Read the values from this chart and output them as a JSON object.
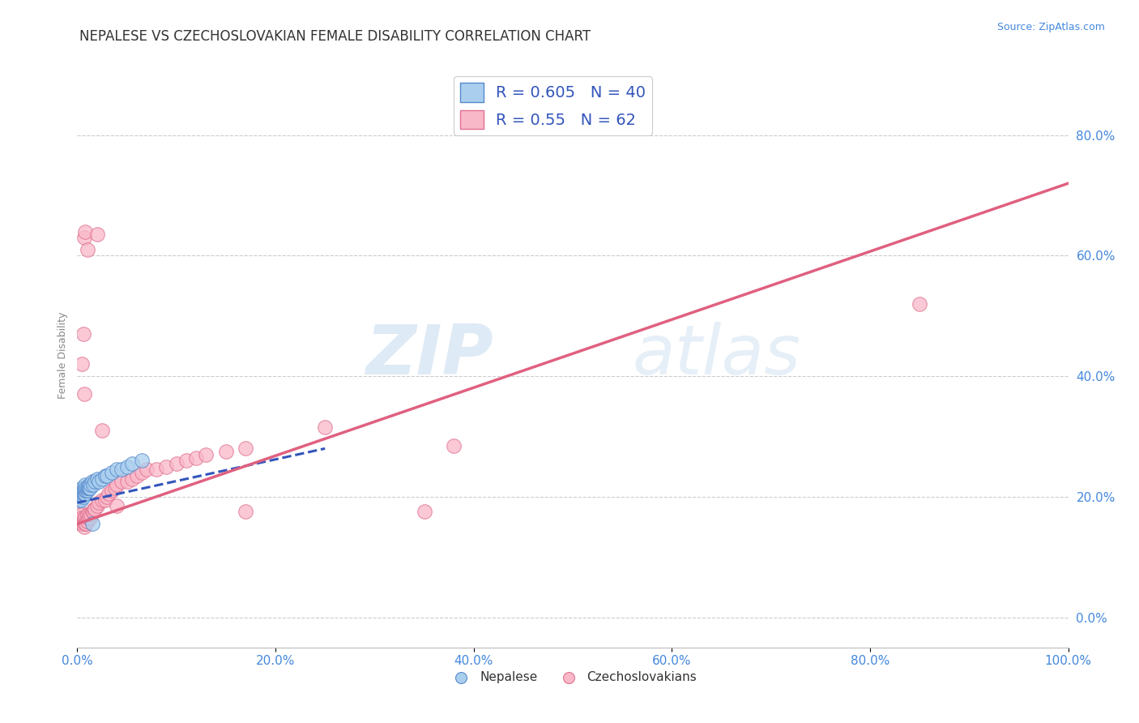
{
  "title": "NEPALESE VS CZECHOSLOVAKIAN FEMALE DISABILITY CORRELATION CHART",
  "source_text": "Source: ZipAtlas.com",
  "ylabel": "Female Disability",
  "xlim": [
    0.0,
    1.0
  ],
  "ylim": [
    -0.05,
    0.92
  ],
  "xticks": [
    0.0,
    0.2,
    0.4,
    0.6,
    0.8,
    1.0
  ],
  "xtick_labels": [
    "0.0%",
    "20.0%",
    "40.0%",
    "60.0%",
    "80.0%",
    "100.0%"
  ],
  "yticks": [
    0.0,
    0.2,
    0.4,
    0.6,
    0.8
  ],
  "ytick_labels": [
    "0.0%",
    "20.0%",
    "40.0%",
    "60.0%",
    "80.0%"
  ],
  "nepalese_R": 0.605,
  "nepalese_N": 40,
  "czechoslovakian_R": 0.55,
  "czechoslovakian_N": 62,
  "nepalese_color": "#AACFEE",
  "czechoslovakian_color": "#F9B8C8",
  "nepalese_edge_color": "#5588CC",
  "czechoslovakian_edge_color": "#E07090",
  "nepalese_line_color": "#3355BB",
  "czechoslovakian_line_color": "#E06080",
  "axis_tick_color": "#4488DD",
  "legend_text_color": "#3355BB",
  "watermark_color": "#DDEEFF",
  "title_fontsize": 12,
  "axis_label_fontsize": 9,
  "tick_fontsize": 11,
  "legend_fontsize": 14,
  "nepalese_scatter": [
    [
      0.002,
      0.195
    ],
    [
      0.003,
      0.205
    ],
    [
      0.003,
      0.21
    ],
    [
      0.004,
      0.2
    ],
    [
      0.004,
      0.195
    ],
    [
      0.005,
      0.205
    ],
    [
      0.005,
      0.21
    ],
    [
      0.005,
      0.215
    ],
    [
      0.006,
      0.2
    ],
    [
      0.006,
      0.205
    ],
    [
      0.006,
      0.21
    ],
    [
      0.007,
      0.205
    ],
    [
      0.007,
      0.215
    ],
    [
      0.008,
      0.205
    ],
    [
      0.008,
      0.21
    ],
    [
      0.008,
      0.22
    ],
    [
      0.009,
      0.21
    ],
    [
      0.009,
      0.215
    ],
    [
      0.01,
      0.21
    ],
    [
      0.01,
      0.215
    ],
    [
      0.011,
      0.215
    ],
    [
      0.012,
      0.215
    ],
    [
      0.012,
      0.22
    ],
    [
      0.013,
      0.215
    ],
    [
      0.014,
      0.22
    ],
    [
      0.015,
      0.225
    ],
    [
      0.016,
      0.22
    ],
    [
      0.018,
      0.225
    ],
    [
      0.02,
      0.23
    ],
    [
      0.022,
      0.225
    ],
    [
      0.025,
      0.23
    ],
    [
      0.028,
      0.235
    ],
    [
      0.03,
      0.235
    ],
    [
      0.035,
      0.24
    ],
    [
      0.04,
      0.245
    ],
    [
      0.045,
      0.245
    ],
    [
      0.05,
      0.25
    ],
    [
      0.055,
      0.255
    ],
    [
      0.065,
      0.26
    ],
    [
      0.015,
      0.155
    ]
  ],
  "czechoslovakian_scatter": [
    [
      0.002,
      0.175
    ],
    [
      0.003,
      0.165
    ],
    [
      0.003,
      0.155
    ],
    [
      0.004,
      0.16
    ],
    [
      0.004,
      0.17
    ],
    [
      0.005,
      0.155
    ],
    [
      0.005,
      0.165
    ],
    [
      0.006,
      0.16
    ],
    [
      0.006,
      0.155
    ],
    [
      0.007,
      0.165
    ],
    [
      0.007,
      0.15
    ],
    [
      0.008,
      0.155
    ],
    [
      0.008,
      0.165
    ],
    [
      0.009,
      0.16
    ],
    [
      0.009,
      0.155
    ],
    [
      0.01,
      0.16
    ],
    [
      0.01,
      0.17
    ],
    [
      0.011,
      0.165
    ],
    [
      0.012,
      0.17
    ],
    [
      0.013,
      0.165
    ],
    [
      0.014,
      0.17
    ],
    [
      0.015,
      0.175
    ],
    [
      0.016,
      0.175
    ],
    [
      0.017,
      0.18
    ],
    [
      0.018,
      0.18
    ],
    [
      0.02,
      0.185
    ],
    [
      0.022,
      0.19
    ],
    [
      0.025,
      0.195
    ],
    [
      0.028,
      0.195
    ],
    [
      0.03,
      0.2
    ],
    [
      0.032,
      0.205
    ],
    [
      0.035,
      0.21
    ],
    [
      0.038,
      0.215
    ],
    [
      0.04,
      0.22
    ],
    [
      0.045,
      0.225
    ],
    [
      0.05,
      0.225
    ],
    [
      0.055,
      0.23
    ],
    [
      0.06,
      0.235
    ],
    [
      0.065,
      0.24
    ],
    [
      0.07,
      0.245
    ],
    [
      0.08,
      0.245
    ],
    [
      0.09,
      0.25
    ],
    [
      0.1,
      0.255
    ],
    [
      0.11,
      0.26
    ],
    [
      0.12,
      0.265
    ],
    [
      0.13,
      0.27
    ],
    [
      0.15,
      0.275
    ],
    [
      0.17,
      0.28
    ],
    [
      0.005,
      0.42
    ],
    [
      0.006,
      0.47
    ],
    [
      0.007,
      0.37
    ],
    [
      0.007,
      0.63
    ],
    [
      0.008,
      0.64
    ],
    [
      0.01,
      0.61
    ],
    [
      0.02,
      0.635
    ],
    [
      0.025,
      0.31
    ],
    [
      0.04,
      0.185
    ],
    [
      0.35,
      0.175
    ],
    [
      0.17,
      0.175
    ],
    [
      0.85,
      0.52
    ],
    [
      0.38,
      0.285
    ],
    [
      0.25,
      0.315
    ]
  ],
  "blue_line_x0": 0.0,
  "blue_line_y0": 0.19,
  "blue_line_x1": 0.25,
  "blue_line_y1": 0.28,
  "pink_line_x0": 0.0,
  "pink_line_y0": 0.155,
  "pink_line_x1": 1.0,
  "pink_line_y1": 0.72
}
